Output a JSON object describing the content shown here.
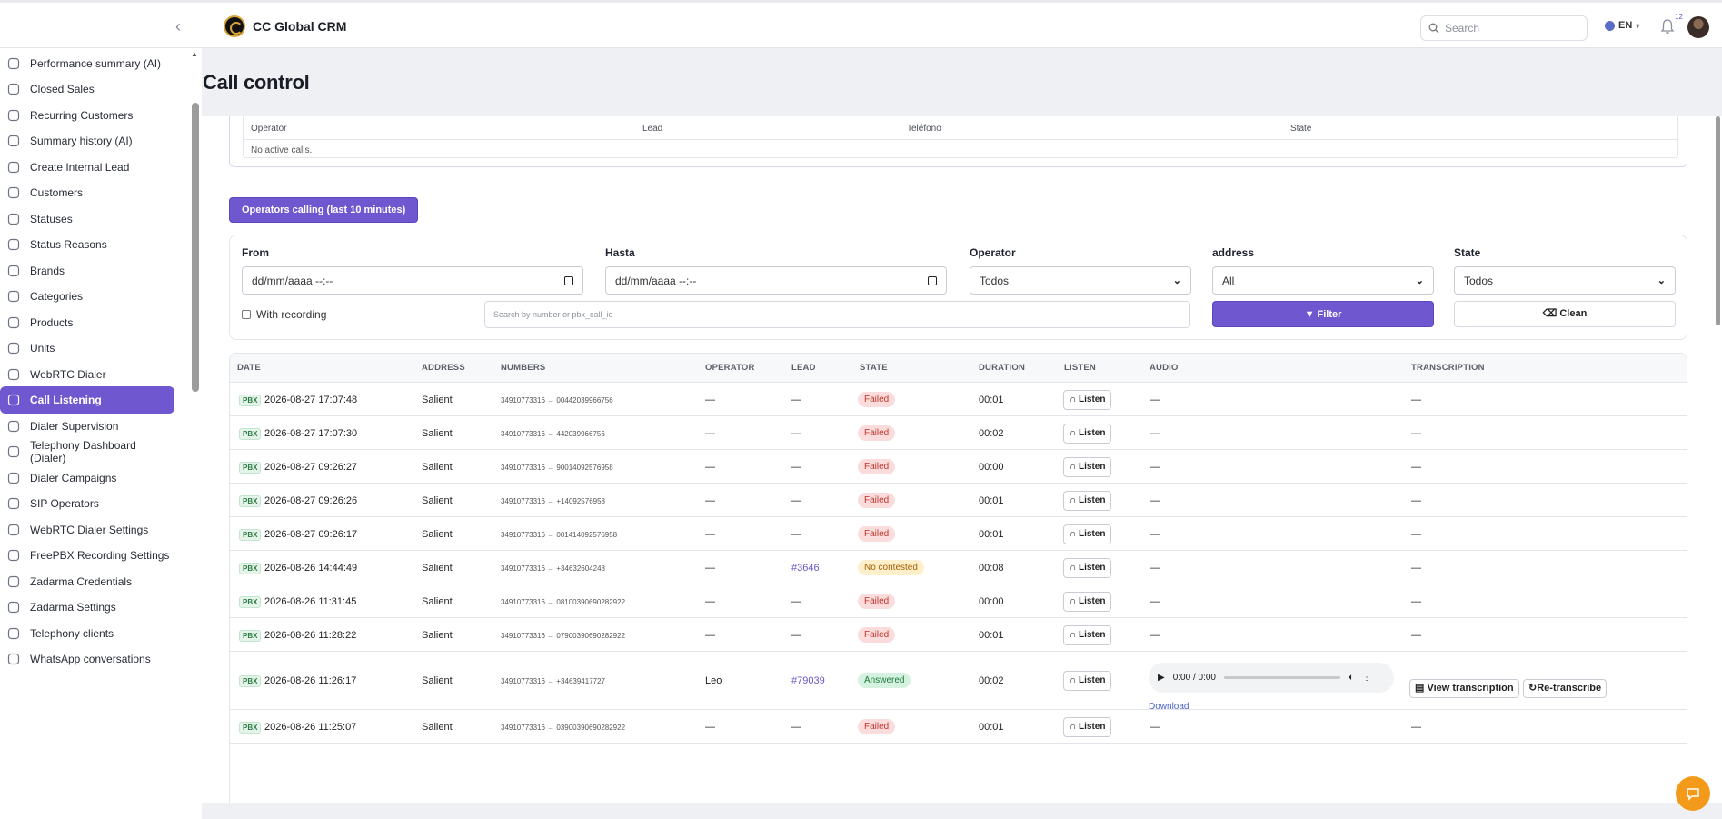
{
  "header": {
    "brand": "CC Global CRM",
    "search_placeholder": "Search",
    "language": "EN",
    "notifications_count": "12"
  },
  "sidebar": {
    "items": [
      {
        "label": "Performance summary (AI)",
        "icon": "sparkles-icon"
      },
      {
        "label": "Closed Sales",
        "icon": "check-circle-icon"
      },
      {
        "label": "Recurring Customers",
        "icon": "refresh-icon"
      },
      {
        "label": "Summary history (AI)",
        "icon": "clock-icon"
      },
      {
        "label": "Create Internal Lead",
        "icon": "plus-circle-icon"
      },
      {
        "label": "Customers",
        "icon": "users-icon"
      },
      {
        "label": "Statuses",
        "icon": "list-icon"
      },
      {
        "label": "Status Reasons",
        "icon": "folder-icon"
      },
      {
        "label": "Brands",
        "icon": "tag-icon"
      },
      {
        "label": "Categories",
        "icon": "grid-icon"
      },
      {
        "label": "Products",
        "icon": "bag-icon"
      },
      {
        "label": "Units",
        "icon": "scale-icon"
      },
      {
        "label": "WebRTC Dialer",
        "icon": "phone-icon"
      },
      {
        "label": "Call Listening",
        "icon": "voicemail-icon",
        "active": true
      },
      {
        "label": "Dialer Supervision",
        "icon": "eye-icon"
      },
      {
        "label": "Telephony Dashboard (Dialer)",
        "icon": "bar-chart-icon"
      },
      {
        "label": "Dialer Campaigns",
        "icon": "megaphone-icon"
      },
      {
        "label": "SIP Operators",
        "icon": "users-cog-icon"
      },
      {
        "label": "WebRTC Dialer Settings",
        "icon": "gear-icon"
      },
      {
        "label": "FreePBX Recording Settings",
        "icon": "mic-icon"
      },
      {
        "label": "Zadarma Credentials",
        "icon": "key-icon"
      },
      {
        "label": "Zadarma Settings",
        "icon": "gear-icon"
      },
      {
        "label": "Telephony clients",
        "icon": "folder-icon"
      },
      {
        "label": "WhatsApp conversations",
        "icon": "chat-icon"
      }
    ]
  },
  "page": {
    "title": "Call control"
  },
  "active_calls": {
    "headers": [
      "Operator",
      "Lead",
      "Teléfono",
      "State"
    ],
    "empty_text": "No active calls."
  },
  "operators_button": "Operators calling (last 10 minutes)",
  "filters": {
    "from_label": "From",
    "from_placeholder": "dd/mm/aaaa --:--",
    "to_label": "Hasta",
    "to_placeholder": "dd/mm/aaaa --:--",
    "operator_label": "Operator",
    "operator_value": "Todos",
    "address_label": "address",
    "address_value": "All",
    "state_label": "State",
    "state_value": "Todos",
    "recording_label": "With recording",
    "search_placeholder": "Search by number or pbx_call_id",
    "filter_button": "Filter",
    "clean_button": "Clean"
  },
  "calls": {
    "headers": [
      "DATE",
      "ADDRESS",
      "NUMBERS",
      "OPERATOR",
      "LEAD",
      "STATE",
      "DURATION",
      "LISTEN",
      "AUDIO",
      "TRANSCRIPTION"
    ],
    "pbx_tag": "PBX",
    "listen_label": "Listen",
    "rows": [
      {
        "date": "2026-08-27 17:07:48",
        "address": "Salient",
        "numbers": "34910773316 → 00442039966756",
        "operator": "—",
        "lead": "—",
        "state": "Failed",
        "state_kind": "failed",
        "duration": "00:01",
        "audio": "—",
        "transcription": "—"
      },
      {
        "date": "2026-08-27 17:07:30",
        "address": "Salient",
        "numbers": "34910773316 → 442039966756",
        "operator": "—",
        "lead": "—",
        "state": "Failed",
        "state_kind": "failed",
        "duration": "00:02",
        "audio": "—",
        "transcription": "—"
      },
      {
        "date": "2026-08-27 09:26:27",
        "address": "Salient",
        "numbers": "34910773316 → 90014092576958",
        "operator": "—",
        "lead": "—",
        "state": "Failed",
        "state_kind": "failed",
        "duration": "00:00",
        "audio": "—",
        "transcription": "—"
      },
      {
        "date": "2026-08-27 09:26:26",
        "address": "Salient",
        "numbers": "34910773316 → +14092576958",
        "operator": "—",
        "lead": "—",
        "state": "Failed",
        "state_kind": "failed",
        "duration": "00:01",
        "audio": "—",
        "transcription": "—"
      },
      {
        "date": "2026-08-27 09:26:17",
        "address": "Salient",
        "numbers": "34910773316 → 001414092576958",
        "operator": "—",
        "lead": "—",
        "state": "Failed",
        "state_kind": "failed",
        "duration": "00:01",
        "audio": "—",
        "transcription": "—"
      },
      {
        "date": "2026-08-26 14:44:49",
        "address": "Salient",
        "numbers": "34910773316 → +34632604248",
        "operator": "—",
        "lead": "#3646",
        "state": "No contested",
        "state_kind": "nc",
        "duration": "00:08",
        "audio": "—",
        "transcription": "—"
      },
      {
        "date": "2026-08-26 11:31:45",
        "address": "Salient",
        "numbers": "34910773316 → 08100390690282922",
        "operator": "—",
        "lead": "—",
        "state": "Failed",
        "state_kind": "failed",
        "duration": "00:00",
        "audio": "—",
        "transcription": "—"
      },
      {
        "date": "2026-08-26 11:28:22",
        "address": "Salient",
        "numbers": "34910773316 → 07900390690282922",
        "operator": "—",
        "lead": "—",
        "state": "Failed",
        "state_kind": "failed",
        "duration": "00:01",
        "audio": "—",
        "transcription": "—"
      },
      {
        "date": "2026-08-26 11:26:17",
        "address": "Salient",
        "numbers": "34910773316 → +34639417727",
        "operator": "Leo",
        "lead": "#79039",
        "state": "Answered",
        "state_kind": "ans",
        "duration": "00:02",
        "audio_time": "0:00 / 0:00",
        "download": "Download",
        "view_transcription": "View transcription",
        "re_transcribe": "Re-transcribe"
      },
      {
        "date": "2026-08-26 11:25:07",
        "address": "Salient",
        "numbers": "34910773316 → 03900390690282922",
        "operator": "—",
        "lead": "—",
        "state": "Failed",
        "state_kind": "failed",
        "duration": "00:01",
        "audio": "—",
        "transcription": "—"
      }
    ]
  },
  "colors": {
    "accent": "#6f57cf",
    "failed_bg": "#fbdcdc",
    "answered_bg": "#d5f1df",
    "not_contested_bg": "#fdefc9",
    "chat_button": "#f39a1a"
  }
}
